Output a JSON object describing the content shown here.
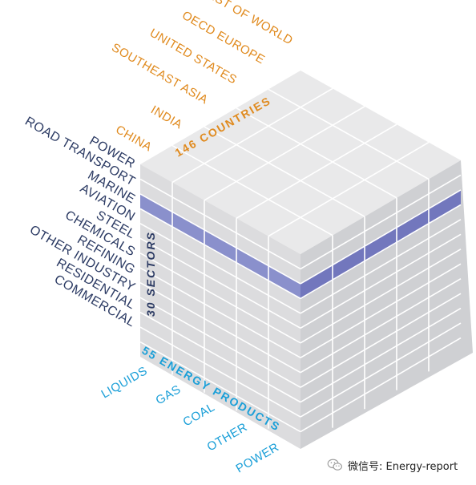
{
  "colors": {
    "countries": "#e08a1e",
    "sectors": "#2b3a63",
    "products": "#1a9fd8",
    "top_face": "#e9e9ea",
    "left_face": "#dcdcde",
    "right_face": "#cfd0d3",
    "highlight": "#8a90cc",
    "highlight_dark": "#7277bd",
    "grid": "#ffffff",
    "cube_text_countries": "#e08a1e",
    "cube_text_sectors": "#2b3a63",
    "cube_text_products": "#1a9fd8"
  },
  "dimensions": {
    "countries": {
      "label": "146 COUNTRIES",
      "items": [
        "CHINA",
        "INDIA",
        "SOUTHEAST ASIA",
        "UNITED STATES",
        "OECD EUROPE",
        "REST OF WORLD"
      ]
    },
    "sectors": {
      "label": "30 SECTORS",
      "items": [
        "POWER",
        "ROAD TRANSPORT",
        "MARINE",
        "AVIATION",
        "STEEL",
        "CHEMICALS",
        "REFINING",
        "OTHER INDUSTRY",
        "RESIDENTIAL",
        "COMMERCIAL"
      ]
    },
    "products": {
      "label": "55 ENERGY PRODUCTS",
      "items": [
        "LIQUIDS",
        "GAS",
        "COAL",
        "OTHER",
        "POWER"
      ]
    }
  },
  "highlighted_sector": "MARINE",
  "watermark": {
    "text": "微信号: Energy-report",
    "icon": "wechat-icon"
  }
}
